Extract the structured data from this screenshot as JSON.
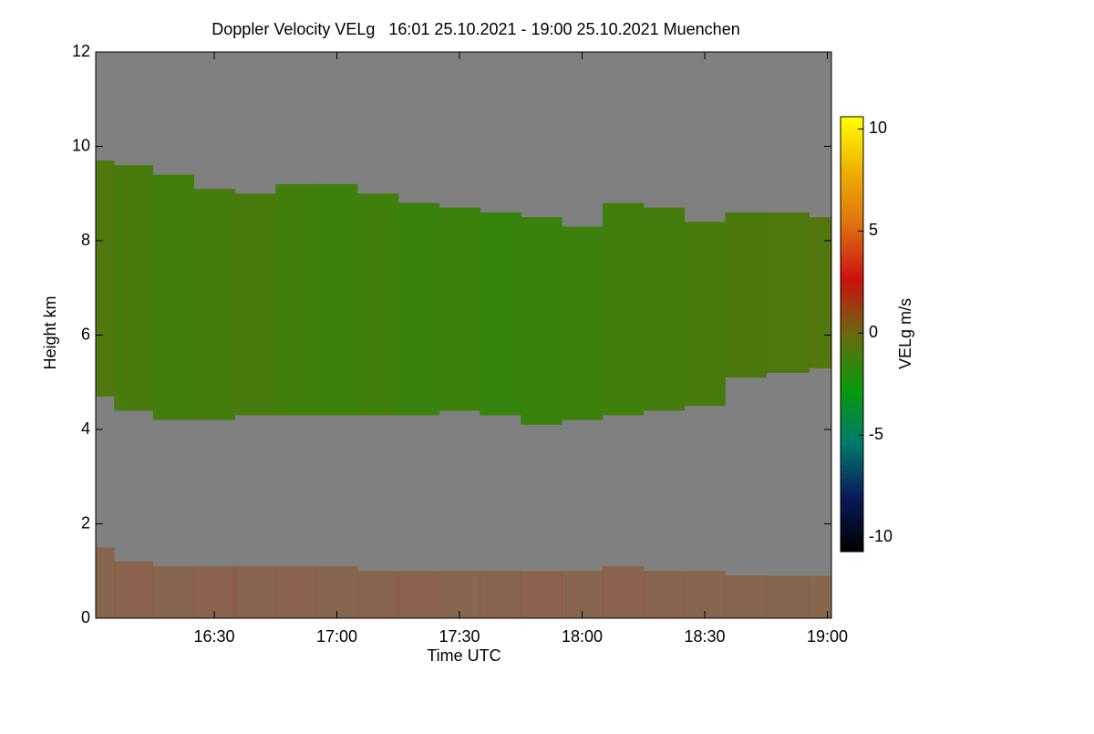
{
  "chart_data": {
    "type": "heatmap",
    "title": "Doppler Velocity VELg   16:01 25.10.2021 - 19:00 25.10.2021 Muenchen",
    "xlabel": "Time UTC",
    "ylabel": "Height km",
    "colorbar_label": "VELg m/s",
    "xlim": [
      1,
      181
    ],
    "xticks": [
      {
        "value": 30,
        "label": "16:30"
      },
      {
        "value": 60,
        "label": "17:00"
      },
      {
        "value": 90,
        "label": "17:30"
      },
      {
        "value": 120,
        "label": "18:00"
      },
      {
        "value": 150,
        "label": "18:30"
      },
      {
        "value": 180,
        "label": "19:00"
      }
    ],
    "ylim": [
      0,
      12
    ],
    "yticks": [
      0,
      2,
      4,
      6,
      8,
      10,
      12
    ],
    "clim": [
      -10.7,
      10.6
    ],
    "cticks": [
      -10,
      -5,
      0,
      5,
      10
    ],
    "background": "#808080",
    "colormap": [
      "#000000",
      "#0a1a5a",
      "#007a6a",
      "#0a9a0a",
      "#6a6a10",
      "#cc1010",
      "#dd7010",
      "#f0b000",
      "#ffff00"
    ],
    "x": [
      1,
      10,
      20,
      30,
      40,
      50,
      60,
      70,
      80,
      90,
      100,
      110,
      120,
      130,
      140,
      150,
      160,
      170,
      181
    ],
    "layers": [
      {
        "top": [
          9.7,
          9.6,
          9.4,
          9.1,
          9.0,
          9.2,
          9.2,
          9.0,
          8.8,
          8.7,
          8.6,
          8.5,
          8.3,
          8.8,
          8.7,
          8.4,
          8.6,
          8.6,
          8.5
        ],
        "base": [
          4.7,
          4.4,
          4.2,
          4.2,
          4.3,
          4.3,
          4.3,
          4.3,
          4.3,
          4.4,
          4.3,
          4.1,
          4.2,
          4.3,
          4.4,
          4.5,
          5.1,
          5.2,
          5.3
        ],
        "values": [
          -0.8,
          -1.0,
          -1.2,
          -1.1,
          -1.0,
          -1.2,
          -1.3,
          -1.2,
          -1.4,
          -1.3,
          -1.5,
          -1.4,
          -1.3,
          -1.2,
          -1.1,
          -1.0,
          -0.9,
          -0.8,
          -0.7
        ]
      },
      {
        "top": [
          1.5,
          1.2,
          1.1,
          1.1,
          1.1,
          1.1,
          1.1,
          1.0,
          1.0,
          1.0,
          1.0,
          1.0,
          1.0,
          1.1,
          1.0,
          1.0,
          0.9,
          0.9,
          0.9
        ],
        "base": [
          0,
          0,
          0,
          0,
          0,
          0,
          0,
          0,
          0,
          0,
          0,
          0,
          0,
          0,
          0,
          0,
          0,
          0,
          0
        ],
        "values": [
          1.0,
          1.2,
          1.0,
          1.3,
          1.1,
          1.2,
          1.0,
          1.1,
          1.2,
          1.0,
          1.1,
          1.3,
          1.0,
          1.2,
          1.1,
          1.0,
          1.0,
          0.9,
          0.9
        ]
      }
    ]
  }
}
